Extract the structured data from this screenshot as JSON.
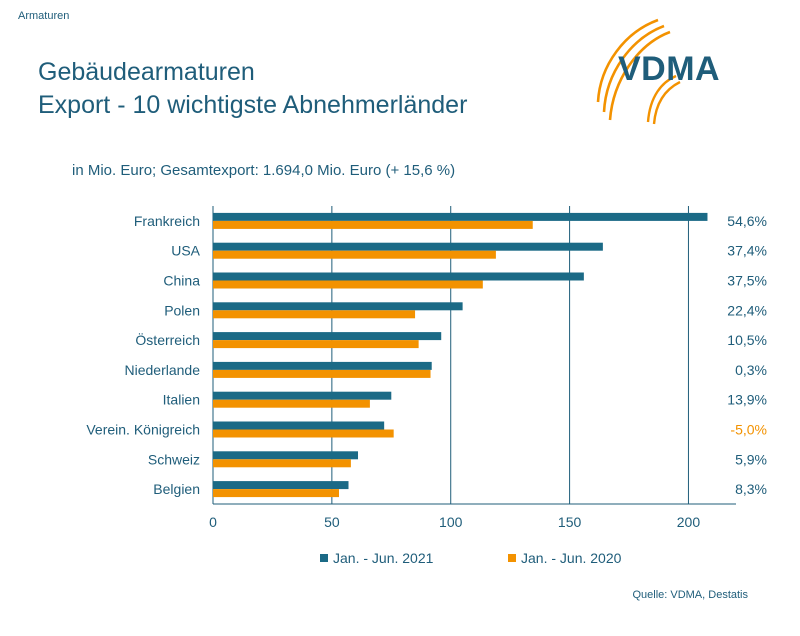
{
  "header": {
    "section": "Armaturen",
    "title_line1": "Gebäudearmaturen",
    "title_line2": "Export - 10 wichtigste Abnehmerländer",
    "subtitle": "in Mio. Euro; Gesamtexport: 1.694,0 Mio. Euro (+ 15,6 %)"
  },
  "logo": {
    "text": "VDMA",
    "icon": "vdma-swoosh-logo"
  },
  "source": "Quelle: VDMA, Destatis",
  "colors": {
    "series_2021": "#1b6a86",
    "series_2020": "#f39200",
    "negative_change": "#f39200",
    "text": "#1f5d7a",
    "grid": "#1f5d7a"
  },
  "chart_data": {
    "type": "bar",
    "orientation": "horizontal",
    "categories": [
      "Frankreich",
      "USA",
      "China",
      "Polen",
      "Österreich",
      "Niederlande",
      "Italien",
      "Verein. Königreich",
      "Schweiz",
      "Belgien"
    ],
    "series": [
      {
        "name": "Jan. - Jun. 2021",
        "values": [
          208,
          164,
          156,
          105,
          96,
          92,
          75,
          72,
          61,
          57
        ]
      },
      {
        "name": "Jan. - Jun. 2020",
        "values": [
          134.5,
          119,
          113.5,
          85,
          86.5,
          91.5,
          66,
          76,
          58,
          53
        ]
      }
    ],
    "change_labels": [
      "54,6%",
      "37,4%",
      "37,5%",
      "22,4%",
      "10,5%",
      "0,3%",
      "13,9%",
      "-5,0%",
      "5,9%",
      "8,3%"
    ],
    "xlim": [
      0,
      220
    ],
    "xticks": [
      0,
      50,
      100,
      150,
      200
    ],
    "grid": true,
    "legend_position": "bottom"
  }
}
